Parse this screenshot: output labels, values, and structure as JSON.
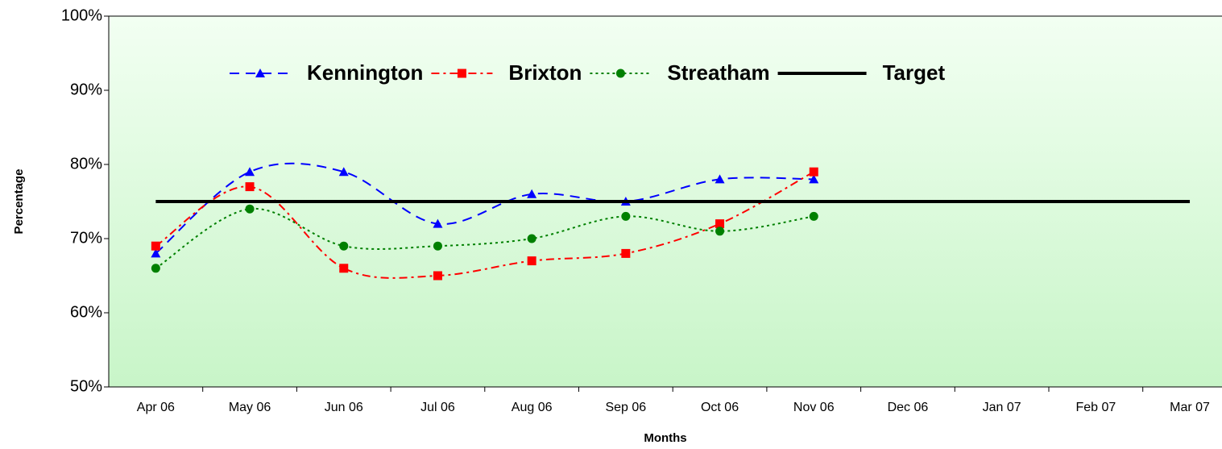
{
  "chart_data": {
    "type": "line",
    "ylabel": "Percentage",
    "xlabel": "Months",
    "categories": [
      "Apr 06",
      "May 06",
      "Jun 06",
      "Jul 06",
      "Aug 06",
      "Sep 06",
      "Oct 06",
      "Nov 06",
      "Dec 06",
      "Jan 07",
      "Feb 07",
      "Mar 07"
    ],
    "series": [
      {
        "name": "Kennington",
        "color": "#0000ff",
        "marker": "triangle",
        "dash": "12 8",
        "smooth": true,
        "values": [
          68,
          79,
          79,
          72,
          76,
          75,
          78,
          78,
          null,
          null,
          null,
          null
        ]
      },
      {
        "name": "Brixton",
        "color": "#ff0000",
        "marker": "square",
        "dash": "10 5 3 5",
        "smooth": true,
        "values": [
          69,
          77,
          66,
          65,
          67,
          68,
          72,
          79,
          null,
          null,
          null,
          null
        ]
      },
      {
        "name": "Streatham",
        "color": "#008000",
        "marker": "circle",
        "dash": "3 4",
        "smooth": true,
        "values": [
          66,
          74,
          69,
          69,
          70,
          73,
          71,
          73,
          null,
          null,
          null,
          null
        ]
      },
      {
        "name": "Target",
        "color": "#000000",
        "marker": "none",
        "dash": "none",
        "smooth": false,
        "values": [
          75,
          75,
          75,
          75,
          75,
          75,
          75,
          75,
          75,
          75,
          75,
          75
        ]
      }
    ],
    "ylim": [
      50,
      100
    ],
    "yticks": [
      {
        "value": 50,
        "label": "50%"
      },
      {
        "value": 60,
        "label": "60%"
      },
      {
        "value": 70,
        "label": "70%"
      },
      {
        "value": 80,
        "label": "80%"
      },
      {
        "value": 90,
        "label": "90%"
      },
      {
        "value": 100,
        "label": "100%"
      }
    ],
    "legend": "top",
    "grid": false
  }
}
